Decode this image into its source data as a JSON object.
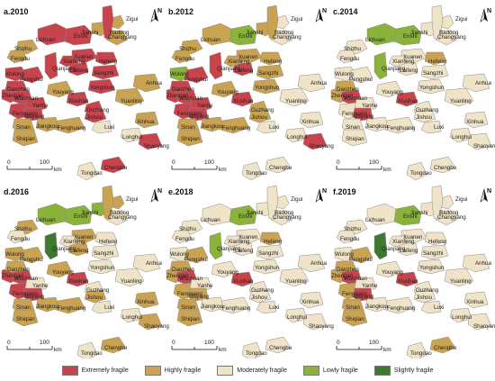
{
  "classes": [
    {
      "key": "extreme",
      "label": "Extremely fragile",
      "color": "#c8444c"
    },
    {
      "key": "high",
      "label": "Highly fragile",
      "color": "#caa352"
    },
    {
      "key": "moderate",
      "label": "Moderately fragile",
      "color": "#efe3c8"
    },
    {
      "key": "low",
      "label": "Lowly fragile",
      "color": "#8bb23a"
    },
    {
      "key": "slight",
      "label": "Slightly fragile",
      "color": "#3e7a2e"
    }
  ],
  "north_label": "N",
  "scale_bar": {
    "ticks": [
      "0",
      "100"
    ],
    "unit": "km"
  },
  "panels": [
    {
      "title": "a.2010",
      "classes": {
        "zigui": "high",
        "changyang": "high",
        "jianshi": "high",
        "badong": "extreme",
        "lichuan": "extreme",
        "enshi": "extreme",
        "shizhu": "high",
        "fengdu": "high",
        "xuanen": "extreme",
        "hefeng": "extreme",
        "wulong": "extreme",
        "qianjiang": "extreme",
        "laifeng": "extreme",
        "sangzhi": "extreme",
        "pengshui": "extreme",
        "xianfeng": "extreme",
        "zhenghan": "extreme",
        "daozhen": "extreme",
        "yongshun": "extreme",
        "wuchuan": "extreme",
        "youyang": "high",
        "yuanling": "high",
        "fenggang": "extreme",
        "yanhe": "extreme",
        "xiushan": "extreme",
        "guzhang": "extreme",
        "dejiang": "extreme",
        "jishou": "extreme",
        "sinan": "high",
        "jiangkou": "high",
        "fenghuang": "high",
        "luxi": "moderate",
        "shiqian": "high",
        "anhua": "high",
        "xinhua": "high",
        "longhui": "moderate",
        "shaoyang": "extreme",
        "chengbu": "extreme",
        "tongdao": "moderate"
      }
    },
    {
      "title": "b.2012",
      "classes": {
        "zigui": "moderate",
        "changyang": "moderate",
        "jianshi": "high",
        "badong": "high",
        "lichuan": "high",
        "enshi": "low",
        "shizhu": "high",
        "fengdu": "high",
        "xuanen": "high",
        "hefeng": "high",
        "wulong": "low",
        "qianjiang": "extreme",
        "laifeng": "extreme",
        "sangzhi": "high",
        "pengshui": "extreme",
        "xianfeng": "high",
        "zhenghan": "extreme",
        "daozhen": "extreme",
        "yongshun": "high",
        "wuchuan": "extreme",
        "youyang": "high",
        "yuanling": "moderate",
        "fenggang": "extreme",
        "yanhe": "extreme",
        "xiushan": "extreme",
        "guzhang": "high",
        "dejiang": "extreme",
        "jishou": "high",
        "sinan": "high",
        "jiangkou": "high",
        "fenghuang": "high",
        "luxi": "moderate",
        "shiqian": "high",
        "anhua": "moderate",
        "xinhua": "moderate",
        "longhui": "moderate",
        "shaoyang": "extreme",
        "chengbu": "moderate",
        "tongdao": "moderate"
      }
    },
    {
      "title": "c.2014",
      "classes": {
        "zigui": "moderate",
        "changyang": "moderate",
        "jianshi": "moderate",
        "badong": "moderate",
        "lichuan": "low",
        "enshi": "low",
        "shizhu": "moderate",
        "fengdu": "moderate",
        "xuanen": "moderate",
        "hefeng": "high",
        "wulong": "moderate",
        "qianjiang": "low",
        "laifeng": "moderate",
        "sangzhi": "moderate",
        "pengshui": "moderate",
        "xianfeng": "moderate",
        "zhenghan": "high",
        "daozhen": "high",
        "yongshun": "moderate",
        "wuchuan": "extreme",
        "youyang": "moderate",
        "yuanling": "moderate",
        "fenggang": "moderate",
        "yanhe": "moderate",
        "xiushan": "extreme",
        "guzhang": "moderate",
        "dejiang": "extreme",
        "jishou": "moderate",
        "sinan": "moderate",
        "jiangkou": "moderate",
        "fenghuang": "moderate",
        "luxi": "moderate",
        "shiqian": "moderate",
        "anhua": "moderate",
        "xinhua": "moderate",
        "longhui": "moderate",
        "shaoyang": "moderate",
        "chengbu": "moderate",
        "tongdao": "moderate"
      }
    },
    {
      "title": "d.2016",
      "classes": {
        "zigui": "high",
        "changyang": "moderate",
        "jianshi": "low",
        "badong": "high",
        "lichuan": "low",
        "enshi": "low",
        "shizhu": "high",
        "fengdu": "moderate",
        "xuanen": "high",
        "hefeng": "moderate",
        "wulong": "high",
        "qianjiang": "slight",
        "laifeng": "high",
        "sangzhi": "moderate",
        "pengshui": "high",
        "xianfeng": "moderate",
        "zhenghan": "extreme",
        "daozhen": "high",
        "yongshun": "moderate",
        "wuchuan": "extreme",
        "youyang": "high",
        "yuanling": "moderate",
        "fenggang": "extreme",
        "yanhe": "moderate",
        "xiushan": "extreme",
        "guzhang": "moderate",
        "dejiang": "extreme",
        "jishou": "high",
        "sinan": "high",
        "jiangkou": "high",
        "fenghuang": "high",
        "luxi": "moderate",
        "shiqian": "high",
        "anhua": "moderate",
        "xinhua": "high",
        "longhui": "moderate",
        "shaoyang": "high",
        "chengbu": "high",
        "tongdao": "moderate"
      }
    },
    {
      "title": "e.2018",
      "classes": {
        "zigui": "moderate",
        "changyang": "moderate",
        "jianshi": "moderate",
        "badong": "moderate",
        "lichuan": "moderate",
        "enshi": "low",
        "shizhu": "moderate",
        "fengdu": "moderate",
        "xuanen": "moderate",
        "hefeng": "high",
        "wulong": "moderate",
        "qianjiang": "low",
        "laifeng": "moderate",
        "sangzhi": "moderate",
        "pengshui": "high",
        "xianfeng": "moderate",
        "zhenghan": "high",
        "daozhen": "high",
        "yongshun": "moderate",
        "wuchuan": "extreme",
        "youyang": "moderate",
        "yuanling": "moderate",
        "fenggang": "high",
        "yanhe": "moderate",
        "xiushan": "extreme",
        "guzhang": "moderate",
        "dejiang": "high",
        "jishou": "moderate",
        "sinan": "high",
        "jiangkou": "moderate",
        "fenghuang": "moderate",
        "luxi": "moderate",
        "shiqian": "high",
        "anhua": "moderate",
        "xinhua": "moderate",
        "longhui": "moderate",
        "shaoyang": "moderate",
        "chengbu": "moderate",
        "tongdao": "moderate"
      }
    },
    {
      "title": "f.2019",
      "classes": {
        "zigui": "moderate",
        "changyang": "moderate",
        "jianshi": "moderate",
        "badong": "moderate",
        "lichuan": "moderate",
        "enshi": "low",
        "shizhu": "moderate",
        "fengdu": "moderate",
        "xuanen": "moderate",
        "hefeng": "moderate",
        "wulong": "moderate",
        "qianjiang": "slight",
        "laifeng": "moderate",
        "sangzhi": "moderate",
        "pengshui": "high",
        "xianfeng": "moderate",
        "zhenghan": "high",
        "daozhen": "high",
        "yongshun": "moderate",
        "wuchuan": "extreme",
        "youyang": "moderate",
        "yuanling": "moderate",
        "fenggang": "high",
        "yanhe": "moderate",
        "xiushan": "extreme",
        "guzhang": "moderate",
        "dejiang": "extreme",
        "jishou": "moderate",
        "sinan": "high",
        "jiangkou": "moderate",
        "fenghuang": "moderate",
        "luxi": "moderate",
        "shiqian": "high",
        "anhua": "moderate",
        "xinhua": "moderate",
        "longhui": "moderate",
        "shaoyang": "moderate",
        "chengbu": "high",
        "tongdao": "moderate"
      }
    }
  ],
  "counties": [
    {
      "id": "zigui",
      "name": "Zigui"
    },
    {
      "id": "changyang",
      "name": "Changyang"
    },
    {
      "id": "jianshi",
      "name": "Jianshi"
    },
    {
      "id": "badong",
      "name": "Badong"
    },
    {
      "id": "lichuan",
      "name": "Lichuan"
    },
    {
      "id": "enshi",
      "name": "Enshi"
    },
    {
      "id": "shizhu",
      "name": "Shizhu"
    },
    {
      "id": "fengdu",
      "name": "Fengdu"
    },
    {
      "id": "xuanen",
      "name": "Xuanen"
    },
    {
      "id": "hefeng",
      "name": "Hefeng"
    },
    {
      "id": "wulong",
      "name": "Wulong"
    },
    {
      "id": "qianjiang",
      "name": "Qianjiang"
    },
    {
      "id": "laifeng",
      "name": "Laifeng"
    },
    {
      "id": "sangzhi",
      "name": "Sangzhi"
    },
    {
      "id": "pengshui",
      "name": "Pengshui"
    },
    {
      "id": "xianfeng",
      "name": "Xianfeng"
    },
    {
      "id": "zhenghan",
      "name": "Zhengan"
    },
    {
      "id": "daozhen",
      "name": "Daozhen"
    },
    {
      "id": "yongshun",
      "name": "Yongshun"
    },
    {
      "id": "wuchuan",
      "name": "Wuchuan"
    },
    {
      "id": "youyang",
      "name": "Youyang"
    },
    {
      "id": "yuanling",
      "name": "Yuanling"
    },
    {
      "id": "fenggang",
      "name": "Fenggang"
    },
    {
      "id": "yanhe",
      "name": "Yanhe"
    },
    {
      "id": "xiushan",
      "name": "Xiushan"
    },
    {
      "id": "guzhang",
      "name": "Guzhang"
    },
    {
      "id": "dejiang",
      "name": "Dejiang"
    },
    {
      "id": "jishou",
      "name": "Jishou"
    },
    {
      "id": "sinan",
      "name": "Sinan"
    },
    {
      "id": "jiangkou",
      "name": "Jiangkou"
    },
    {
      "id": "fenghuang",
      "name": "Fenghuang"
    },
    {
      "id": "luxi",
      "name": "Luxi"
    },
    {
      "id": "shiqian",
      "name": "Shiqian"
    },
    {
      "id": "anhua",
      "name": "Anhua"
    },
    {
      "id": "xinhua",
      "name": "Xinhua"
    },
    {
      "id": "longhui",
      "name": "Longhui"
    },
    {
      "id": "shaoyang",
      "name": "Shaoyang"
    },
    {
      "id": "chengbu",
      "name": "Chengbu"
    },
    {
      "id": "tongdao",
      "name": "Tongdao"
    }
  ]
}
